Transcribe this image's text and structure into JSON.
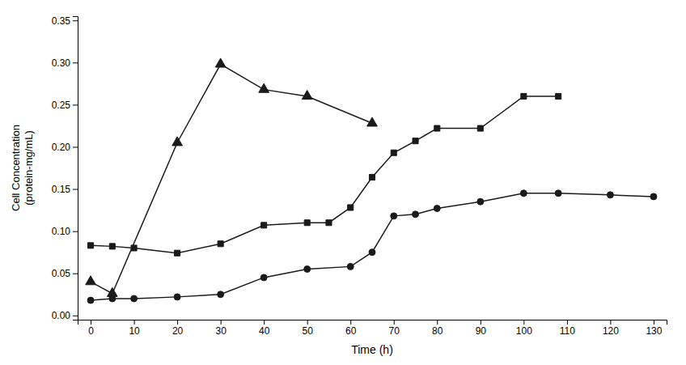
{
  "chart_data": {
    "type": "line",
    "xlabel": "Time (h)",
    "ylabel": "Cell Concentration\n(protein-mg/mL)",
    "xlim": [
      -3,
      133
    ],
    "ylim": [
      -0.005,
      0.355
    ],
    "xticks": [
      0,
      10,
      20,
      30,
      40,
      50,
      60,
      70,
      80,
      90,
      100,
      110,
      120,
      130
    ],
    "yticks": [
      {
        "value": 0,
        "label": "0.00"
      },
      0.05,
      {
        "value": 0.1,
        "label": "0.10"
      },
      0.15,
      {
        "value": 0.2,
        "label": "0.20"
      },
      0.25,
      {
        "value": 0.3,
        "label": "0.30"
      },
      0.35
    ],
    "grid": false,
    "series": [
      {
        "color": "#1a1a1a",
        "marker": "triangle",
        "x": [
          0,
          5,
          20,
          30,
          40,
          50,
          65
        ],
        "values": [
          0.04,
          0.026,
          0.205,
          0.298,
          0.268,
          0.26,
          0.228
        ]
      },
      {
        "color": "#1a1a1a",
        "marker": "square",
        "x": [
          0,
          5,
          10,
          20,
          30,
          40,
          50,
          55,
          60,
          65,
          70,
          75,
          80,
          90,
          100,
          108
        ],
        "values": [
          0.083,
          0.082,
          0.08,
          0.074,
          0.085,
          0.107,
          0.11,
          0.11,
          0.128,
          0.164,
          0.193,
          0.207,
          0.222,
          0.222,
          0.26,
          0.26
        ]
      },
      {
        "color": "#1a1a1a",
        "marker": "circle",
        "x": [
          0,
          5,
          10,
          20,
          30,
          40,
          50,
          60,
          65,
          70,
          75,
          80,
          90,
          100,
          108,
          120,
          130
        ],
        "values": [
          0.018,
          0.02,
          0.02,
          0.022,
          0.025,
          0.045,
          0.055,
          0.058,
          0.075,
          0.118,
          0.12,
          0.127,
          0.135,
          0.145,
          0.145,
          0.143,
          0.141
        ]
      }
    ]
  }
}
